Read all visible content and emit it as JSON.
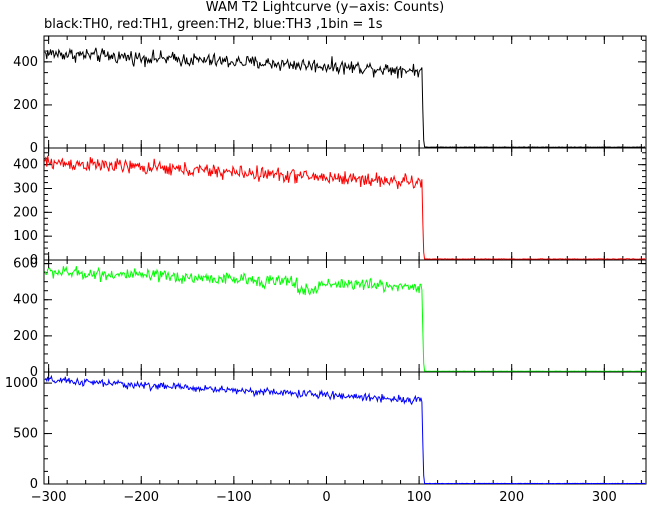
{
  "title": "WAM T2 Lightcurve (y−axis: Counts)",
  "subtitle": "black:TH0, red:TH1, green:TH2, blue:TH3 ,1bin = 1s",
  "chart_data": {
    "type": "line",
    "xlim": [
      -305,
      345
    ],
    "x_ticks": [
      -300,
      -200,
      -100,
      0,
      100,
      200,
      300
    ],
    "x_tick_labels": [
      "−300",
      "−200",
      "−100",
      "0",
      "100",
      "200",
      "300"
    ],
    "grid": false,
    "panels": [
      {
        "series": "TH0",
        "color": "#000000",
        "ylim": [
          0,
          520
        ],
        "y_ticks": [
          0,
          200,
          400
        ],
        "y_tick_labels": [
          "0",
          "200",
          "400"
        ],
        "level_start": 440,
        "level_end": 360,
        "noise": 32,
        "dip_at": 20,
        "dip_depth": 0,
        "drop_at": 104,
        "post_level": 3
      },
      {
        "series": "TH1",
        "color": "#ff0000",
        "ylim": [
          0,
          470
        ],
        "y_ticks": [
          0,
          100,
          200,
          300,
          400
        ],
        "y_tick_labels": [
          "0",
          "100",
          "200",
          "300",
          "400"
        ],
        "level_start": 410,
        "level_end": 325,
        "noise": 30,
        "dip_at": 20,
        "dip_depth": 0,
        "drop_at": 104,
        "post_level": 3
      },
      {
        "series": "TH2",
        "color": "#00ff00",
        "ylim": [
          0,
          620
        ],
        "y_ticks": [
          0,
          200,
          400,
          600
        ],
        "y_tick_labels": [
          "0",
          "200",
          "400",
          "600"
        ],
        "level_start": 555,
        "level_end": 470,
        "noise": 34,
        "dip_at": -20,
        "dip_depth": 45,
        "drop_at": 104,
        "post_level": 3
      },
      {
        "series": "TH3",
        "color": "#0000ff",
        "ylim": [
          0,
          1110
        ],
        "y_ticks": [
          0,
          500,
          1000
        ],
        "y_tick_labels": [
          "0",
          "500",
          "1000"
        ],
        "level_start": 1030,
        "level_end": 830,
        "noise": 38,
        "dip_at": 20,
        "dip_depth": 0,
        "drop_at": 104,
        "post_level": 4
      }
    ]
  }
}
